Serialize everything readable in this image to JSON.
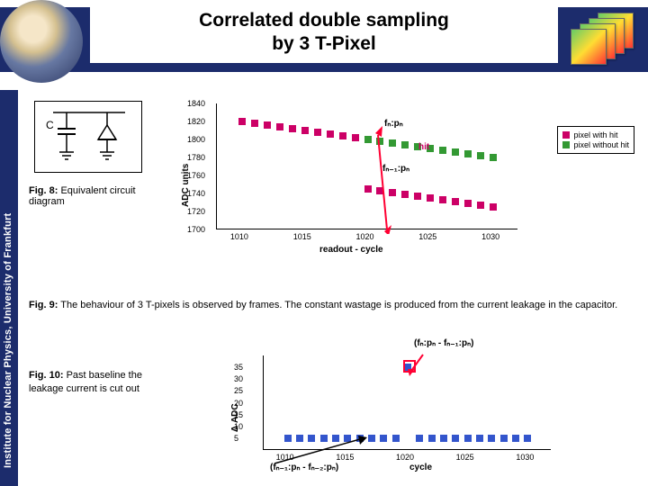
{
  "header": {
    "title_line1": "Correlated double sampling",
    "title_line2": "by 3 T-Pixel"
  },
  "sidebar": {
    "text": "Institute for Nuclear Physics, University of Frankfurt"
  },
  "fig8": {
    "label": "Fig. 8:",
    "text": "Equivalent circuit diagram",
    "cap_letter": "C"
  },
  "fig9": {
    "label": "Fig. 9:",
    "text": "The behaviour of 3 T-pixels is observed by frames.    The constant wastage is produced from the current leakage in the capacitor."
  },
  "fig10": {
    "label": "Fig. 10:",
    "text": "Past baseline the leakage current is cut out"
  },
  "colors": {
    "series_hit": "#cc0066",
    "series_nohit": "#339933",
    "header_band": "#1c2c6c",
    "arrow_red": "#ff0033",
    "blue_marker": "#3355cc"
  },
  "chart1": {
    "ylabel": "ADC units",
    "xlabel": "readout - cycle",
    "xlim": [
      1008,
      1032
    ],
    "ylim": [
      1700,
      1840
    ],
    "yticks": [
      1700,
      1720,
      1740,
      1760,
      1780,
      1800,
      1820,
      1840
    ],
    "xticks": [
      1010,
      1015,
      1020,
      1025,
      1030
    ],
    "legend": [
      {
        "label": "pixel with hit",
        "color": "#cc0066"
      },
      {
        "label": "pixel without hit",
        "color": "#339933"
      }
    ],
    "series": [
      {
        "name": "pixel without hit",
        "color": "#339933",
        "points": [
          [
            1010,
            1820
          ],
          [
            1011,
            1818
          ],
          [
            1012,
            1816
          ],
          [
            1013,
            1814
          ],
          [
            1014,
            1812
          ],
          [
            1015,
            1810
          ],
          [
            1016,
            1808
          ],
          [
            1017,
            1806
          ],
          [
            1018,
            1804
          ],
          [
            1019,
            1802
          ],
          [
            1020,
            1800
          ],
          [
            1021,
            1798
          ],
          [
            1022,
            1796
          ],
          [
            1023,
            1794
          ],
          [
            1024,
            1792
          ],
          [
            1025,
            1790
          ],
          [
            1026,
            1788
          ],
          [
            1027,
            1786
          ],
          [
            1028,
            1784
          ],
          [
            1029,
            1782
          ],
          [
            1030,
            1780
          ]
        ]
      },
      {
        "name": "pixel with hit",
        "color": "#cc0066",
        "points": [
          [
            1010,
            1820
          ],
          [
            1011,
            1818
          ],
          [
            1012,
            1816
          ],
          [
            1013,
            1814
          ],
          [
            1014,
            1812
          ],
          [
            1015,
            1810
          ],
          [
            1016,
            1808
          ],
          [
            1017,
            1806
          ],
          [
            1018,
            1804
          ],
          [
            1019,
            1802
          ],
          [
            1020,
            1745
          ],
          [
            1021,
            1743
          ],
          [
            1022,
            1741
          ],
          [
            1023,
            1739
          ],
          [
            1024,
            1737
          ],
          [
            1025,
            1735
          ],
          [
            1026,
            1733
          ],
          [
            1027,
            1731
          ],
          [
            1028,
            1729
          ],
          [
            1029,
            1727
          ],
          [
            1030,
            1725
          ]
        ]
      }
    ],
    "annotations": {
      "fn": "fₙ:pₙ",
      "fn1": "fₙ₋₁:pₙ",
      "hit": "hit"
    }
  },
  "chart2": {
    "ylabel": "Δ ADC",
    "xlabel": "cycle",
    "xlim": [
      1008,
      1032
    ],
    "ylim": [
      0,
      40
    ],
    "yticks": [
      5,
      10,
      15,
      20,
      25,
      30,
      35
    ],
    "xticks": [
      1010,
      1015,
      1020,
      1025,
      1030
    ],
    "series": [
      {
        "name": "delta",
        "color": "#3355cc",
        "points": [
          [
            1010,
            5
          ],
          [
            1011,
            5
          ],
          [
            1012,
            5
          ],
          [
            1013,
            5
          ],
          [
            1014,
            5
          ],
          [
            1015,
            5
          ],
          [
            1016,
            5
          ],
          [
            1017,
            5
          ],
          [
            1018,
            5
          ],
          [
            1019,
            5
          ],
          [
            1020,
            35
          ],
          [
            1021,
            5
          ],
          [
            1022,
            5
          ],
          [
            1023,
            5
          ],
          [
            1024,
            5
          ],
          [
            1025,
            5
          ],
          [
            1026,
            5
          ],
          [
            1027,
            5
          ],
          [
            1028,
            5
          ],
          [
            1029,
            5
          ],
          [
            1030,
            5
          ]
        ]
      }
    ],
    "annotations": {
      "top": "(fₙ:pₙ - fₙ₋₁:pₙ)",
      "bottom": "(fₙ₋₁:pₙ - fₙ₋₂:pₙ)"
    }
  }
}
